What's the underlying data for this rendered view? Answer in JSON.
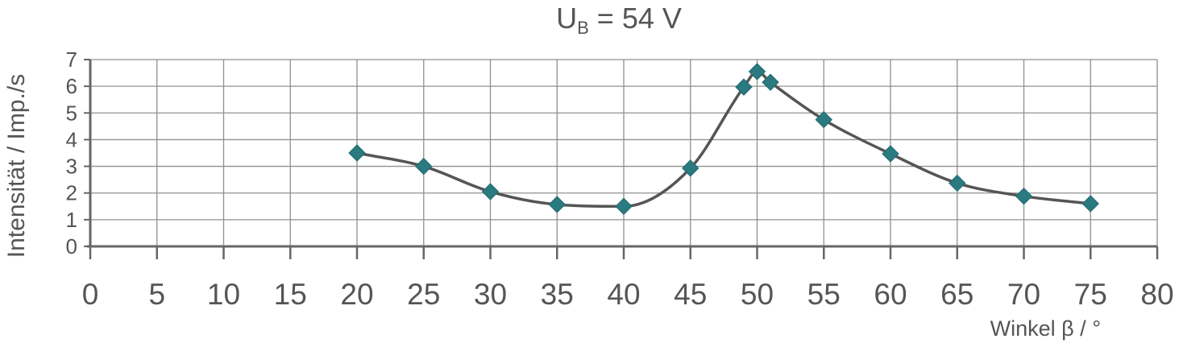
{
  "chart_data": {
    "type": "scatter",
    "title_main": "U",
    "title_subscript": "B",
    "title_rest": " = 54 V",
    "xlabel": "Winkel β / °",
    "ylabel": "Intensität / Imp./s",
    "xlim": [
      0,
      80
    ],
    "ylim": [
      0,
      7
    ],
    "xticks": [
      0,
      5,
      10,
      15,
      20,
      25,
      30,
      35,
      40,
      45,
      50,
      55,
      60,
      65,
      70,
      75,
      80
    ],
    "yticks": [
      0,
      1,
      2,
      3,
      4,
      5,
      6,
      7
    ],
    "grid": true,
    "smooth_line": true,
    "marker": "diamond",
    "marker_color": "#2a7a80",
    "line_color": "#555555",
    "series": [
      {
        "x": [
          20,
          25,
          30,
          35,
          40,
          45,
          49,
          50,
          51,
          55,
          60,
          65,
          70,
          75
        ],
        "y": [
          3.5,
          3.0,
          2.05,
          1.57,
          1.5,
          2.93,
          5.97,
          6.55,
          6.15,
          4.75,
          3.47,
          2.37,
          1.88,
          1.6
        ]
      }
    ]
  }
}
